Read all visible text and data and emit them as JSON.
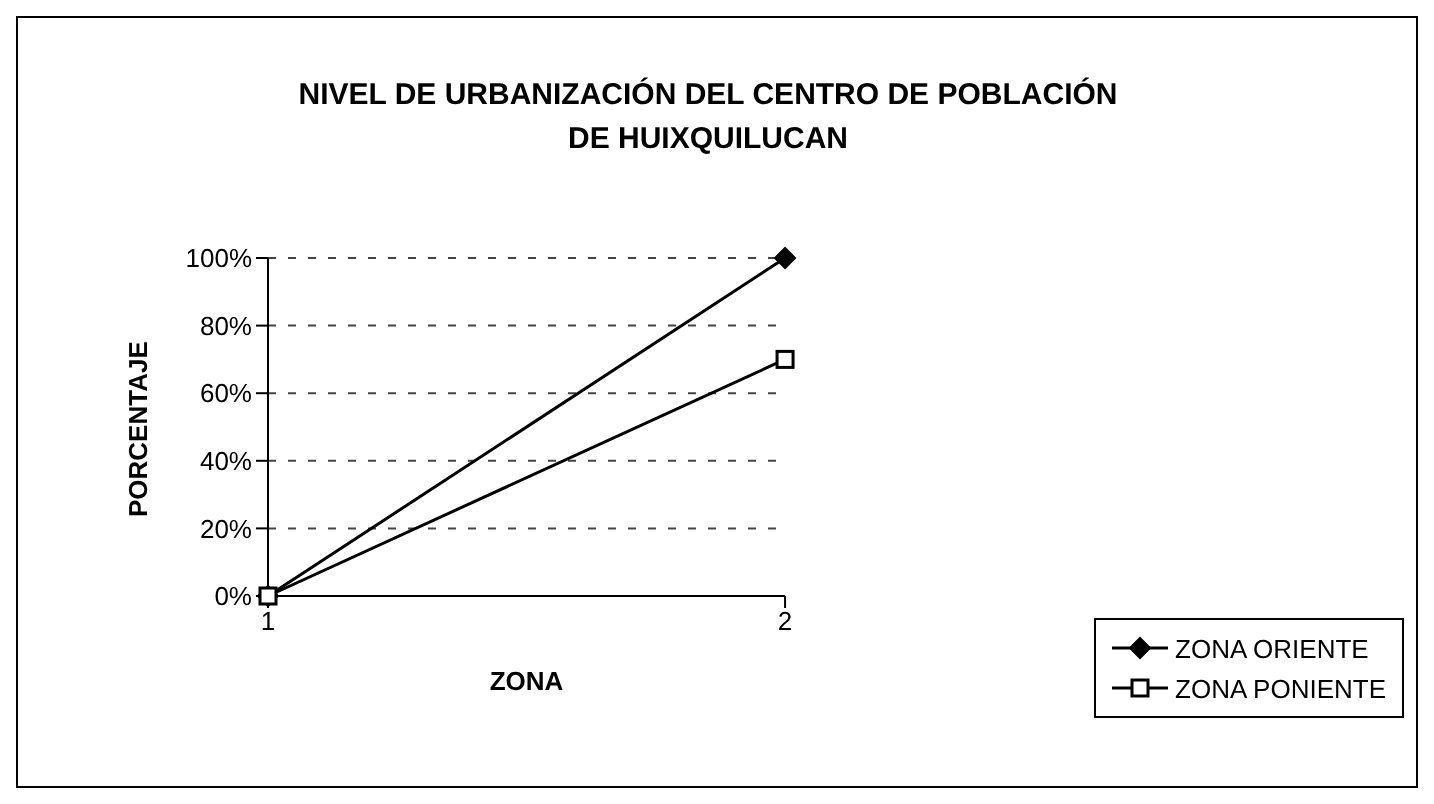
{
  "chart_data": {
    "type": "line",
    "title": "NIVEL DE URBANIZACIÓN DEL CENTRO DE POBLACIÓN DE HUIXQUILUCAN",
    "xlabel": "ZONA",
    "ylabel": "PORCENTAJE",
    "x": [
      1,
      2
    ],
    "xlim": [
      1,
      2
    ],
    "xticks": [
      1,
      2
    ],
    "ylim": [
      0,
      100
    ],
    "yticks": [
      {
        "value": 0,
        "label": "0%"
      },
      {
        "value": 20,
        "label": "20%"
      },
      {
        "value": 40,
        "label": "40%"
      },
      {
        "value": 60,
        "label": "60%"
      },
      {
        "value": 80,
        "label": "80%"
      },
      {
        "value": 100,
        "label": "100%"
      }
    ],
    "grid": "y",
    "legend": "bottom right",
    "series": [
      {
        "name": "ZONA ORIENTE",
        "color": "#000000",
        "marker": "diamond",
        "values": [
          0,
          100
        ]
      },
      {
        "name": "ZONA PONIENTE",
        "color": "#000000",
        "marker": "square",
        "values": [
          0,
          70
        ]
      }
    ]
  }
}
